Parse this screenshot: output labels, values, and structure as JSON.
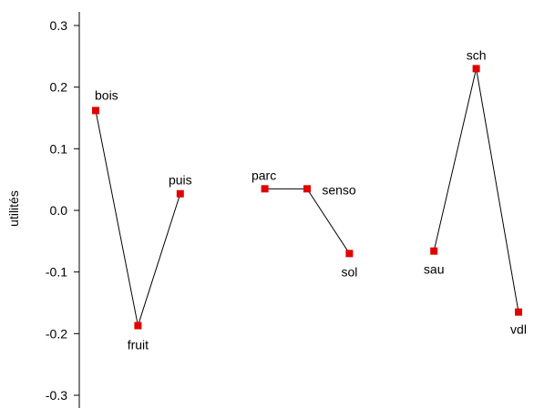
{
  "chart_data": {
    "type": "line",
    "title": "",
    "xlabel": "",
    "ylabel": "utilités",
    "ylim": [
      -0.33,
      0.33
    ],
    "yticks": [
      0.3,
      0.2,
      0.1,
      0.0,
      -0.1,
      -0.2,
      -0.3
    ],
    "ytick_labels": [
      "0.3",
      "0.2",
      "0.1",
      "0.0",
      "-0.1",
      "-0.2",
      "-0.3"
    ],
    "marker_color": "#e00000",
    "line_color": "#000000",
    "grid": false,
    "legend": "none",
    "groups": [
      {
        "points": [
          {
            "label": "bois",
            "x": 1,
            "y": 0.162
          },
          {
            "label": "fruit",
            "x": 2,
            "y": -0.187
          },
          {
            "label": "puis",
            "x": 3,
            "y": 0.027
          }
        ]
      },
      {
        "points": [
          {
            "label": "parc",
            "x": 5,
            "y": 0.035
          },
          {
            "label": "senso",
            "x": 6,
            "y": 0.035
          },
          {
            "label": "sol",
            "x": 7,
            "y": -0.07
          }
        ]
      },
      {
        "points": [
          {
            "label": "sau",
            "x": 9,
            "y": -0.066
          },
          {
            "label": "sch",
            "x": 10,
            "y": 0.23
          },
          {
            "label": "vdl",
            "x": 11,
            "y": -0.165
          }
        ]
      }
    ]
  }
}
